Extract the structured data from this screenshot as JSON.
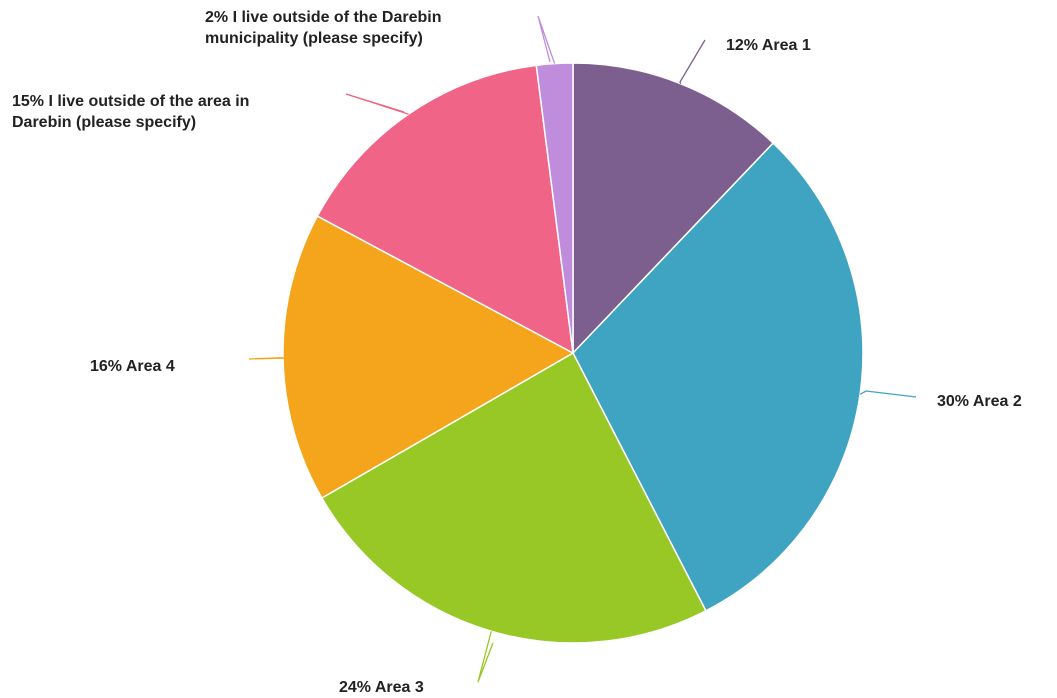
{
  "chart_data": {
    "type": "pie",
    "slices": [
      {
        "name": "Area 1",
        "value": 12,
        "label_lines": [
          "12% Area 1"
        ],
        "color": "#7d5f8f"
      },
      {
        "name": "Area 2",
        "value": 30,
        "label_lines": [
          "30% Area 2"
        ],
        "color": "#3fa3c2"
      },
      {
        "name": "Area 3",
        "value": 24,
        "label_lines": [
          "24% Area 3"
        ],
        "color": "#97c826"
      },
      {
        "name": "Area 4",
        "value": 16,
        "label_lines": [
          "16% Area 4"
        ],
        "color": "#f4a51b"
      },
      {
        "name": "I live outside of the area in Darebin (please specify)",
        "value": 15,
        "label_lines": [
          "15% I live outside of the area in",
          "Darebin (please specify)"
        ],
        "color": "#ef6487"
      },
      {
        "name": "I live outside of the Darebin municipality (please specify)",
        "value": 2,
        "label_lines": [
          "2% I live outside of the Darebin",
          "municipality (please specify)"
        ],
        "color": "#c08ddc"
      }
    ]
  }
}
